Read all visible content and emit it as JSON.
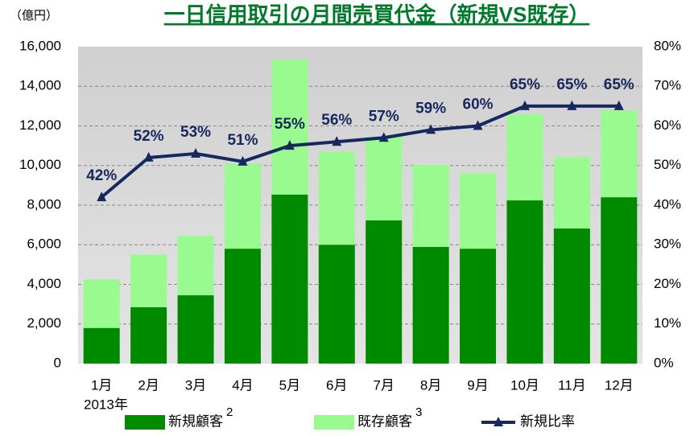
{
  "chart_data": {
    "type": "stacked-bar-line",
    "title": "一日信用取引の月間売買代金（新規VS既存）",
    "y_unit": "（億円）",
    "x_note": "2013年",
    "categories": [
      "1月",
      "2月",
      "3月",
      "4月",
      "5月",
      "6月",
      "7月",
      "8月",
      "9月",
      "10月",
      "11月",
      "12月"
    ],
    "series": [
      {
        "name": "新規顧客",
        "note": "2",
        "color": "#008a00",
        "values": [
          1800,
          2850,
          3450,
          5800,
          8530,
          6000,
          7230,
          5890,
          5800,
          8240,
          6820,
          8400
        ]
      },
      {
        "name": "既存顧客",
        "note": "3",
        "color": "#99fa90",
        "values": [
          2450,
          2650,
          3000,
          4300,
          6820,
          4700,
          4220,
          4140,
          3820,
          4350,
          3620,
          4390
        ]
      },
      {
        "name": "新規比率",
        "axis": "y2",
        "color": "#16285e",
        "values": [
          42,
          52,
          53,
          51,
          55,
          56,
          57,
          59,
          60,
          65,
          65,
          65
        ],
        "value_labels": [
          "42%",
          "52%",
          "53%",
          "51%",
          "55%",
          "56%",
          "57%",
          "59%",
          "60%",
          "65%",
          "65%",
          "65%"
        ]
      }
    ],
    "ylim": [
      0,
      16000
    ],
    "yticks": [
      0,
      {
        "value": 2000,
        "label": "2,000"
      },
      {
        "value": 4000,
        "label": "4,000"
      },
      {
        "value": 6000,
        "label": "6,000"
      },
      {
        "value": 8000,
        "label": "8,000"
      },
      {
        "value": 10000,
        "label": "10,000"
      },
      {
        "value": 12000,
        "label": "12,000"
      },
      {
        "value": 14000,
        "label": "14,000"
      },
      {
        "value": 16000,
        "label": "16,000"
      }
    ],
    "y2lim": [
      0,
      80
    ],
    "y2ticks": [
      {
        "value": 0,
        "label": "0%"
      },
      {
        "value": 10,
        "label": "10%"
      },
      {
        "value": 20,
        "label": "20%"
      },
      {
        "value": 30,
        "label": "30%"
      },
      {
        "value": 40,
        "label": "40%"
      },
      {
        "value": 50,
        "label": "50%"
      },
      {
        "value": 60,
        "label": "60%"
      },
      {
        "value": 70,
        "label": "70%"
      },
      {
        "value": 80,
        "label": "80%"
      }
    ],
    "grid": true
  }
}
